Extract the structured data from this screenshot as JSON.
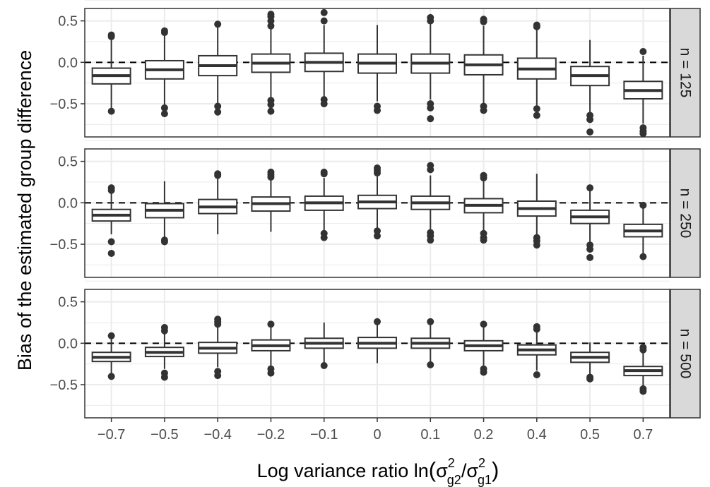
{
  "chart_data": {
    "type": "boxplot",
    "xlabel": "Log variance ratio ln(σ²g2/σ²g1)",
    "xlabel_parts": {
      "main": "Log variance ratio ln",
      "open": "(",
      "close": ")",
      "sigma": "σ",
      "exp": "2",
      "sub_num": "g2",
      "sub_den": "g1",
      "slash": "/"
    },
    "ylabel": "Bias of the estimated group difference",
    "categories": [
      "−0.7",
      "−0.5",
      "−0.4",
      "−0.2",
      "−0.1",
      "0",
      "0.1",
      "0.2",
      "0.4",
      "0.5",
      "0.7"
    ],
    "ylim": [
      -0.9,
      0.65
    ],
    "yticks": [
      -0.5,
      0.0,
      0.5
    ],
    "ytick_labels": [
      "−0.5",
      "0.0",
      "0.5"
    ],
    "reference_line": 0,
    "grid": true,
    "colors": {
      "box_fill": "#ffffff",
      "box_stroke": "#333333",
      "grid": "#ebebeb",
      "strip_bg": "#d9d9d9",
      "reference": "#000000"
    },
    "panels": [
      {
        "label": "n = 125",
        "boxes": [
          {
            "q1": -0.26,
            "median": -0.16,
            "q3": -0.07,
            "lo": -0.55,
            "hi": 0.27,
            "outliers": [
              0.33,
              0.31,
              -0.59
            ]
          },
          {
            "q1": -0.2,
            "median": -0.09,
            "q3": 0.02,
            "lo": -0.52,
            "hi": 0.33,
            "outliers": [
              0.38,
              0.36,
              -0.55,
              -0.62
            ]
          },
          {
            "q1": -0.16,
            "median": -0.04,
            "q3": 0.08,
            "lo": -0.5,
            "hi": 0.45,
            "outliers": [
              0.46,
              -0.53,
              -0.6
            ]
          },
          {
            "q1": -0.12,
            "median": -0.01,
            "q3": 0.1,
            "lo": -0.44,
            "hi": 0.42,
            "outliers": [
              0.58,
              0.55,
              0.5,
              0.44,
              -0.46,
              -0.51,
              -0.59
            ]
          },
          {
            "q1": -0.11,
            "median": 0.0,
            "q3": 0.11,
            "lo": -0.42,
            "hi": 0.45,
            "outliers": [
              0.6,
              0.5,
              -0.45,
              -0.5
            ]
          },
          {
            "q1": -0.13,
            "median": -0.01,
            "q3": 0.1,
            "lo": -0.47,
            "hi": 0.45,
            "outliers": [
              -0.53,
              -0.58
            ]
          },
          {
            "q1": -0.13,
            "median": -0.01,
            "q3": 0.1,
            "lo": -0.45,
            "hi": 0.47,
            "outliers": [
              0.54,
              0.5,
              -0.5,
              -0.55,
              -0.68
            ]
          },
          {
            "q1": -0.15,
            "median": -0.03,
            "q3": 0.09,
            "lo": -0.5,
            "hi": 0.44,
            "outliers": [
              0.52,
              0.49,
              -0.53,
              -0.58
            ]
          },
          {
            "q1": -0.2,
            "median": -0.08,
            "q3": 0.05,
            "lo": -0.52,
            "hi": 0.41,
            "outliers": [
              0.45,
              0.43,
              -0.56,
              -0.64
            ]
          },
          {
            "q1": -0.28,
            "median": -0.16,
            "q3": -0.05,
            "lo": -0.6,
            "hi": 0.27,
            "outliers": [
              -0.64,
              -0.69,
              -0.84
            ]
          },
          {
            "q1": -0.44,
            "median": -0.34,
            "q3": -0.23,
            "lo": -0.74,
            "hi": 0.08,
            "outliers": [
              0.13,
              -0.79,
              -0.83,
              -0.86
            ]
          }
        ]
      },
      {
        "label": "n = 250",
        "boxes": [
          {
            "q1": -0.22,
            "median": -0.15,
            "q3": -0.08,
            "lo": -0.38,
            "hi": 0.13,
            "outliers": [
              0.18,
              0.15,
              -0.47,
              -0.61
            ]
          },
          {
            "q1": -0.18,
            "median": -0.09,
            "q3": -0.01,
            "lo": -0.42,
            "hi": 0.26,
            "outliers": [
              -0.45,
              -0.47
            ]
          },
          {
            "q1": -0.13,
            "median": -0.05,
            "q3": 0.04,
            "lo": -0.38,
            "hi": 0.29,
            "outliers": [
              0.35,
              0.33
            ]
          },
          {
            "q1": -0.1,
            "median": -0.01,
            "q3": 0.07,
            "lo": -0.35,
            "hi": 0.3,
            "outliers": [
              0.37,
              0.34,
              0.31
            ]
          },
          {
            "q1": -0.09,
            "median": 0.0,
            "q3": 0.08,
            "lo": -0.34,
            "hi": 0.3,
            "outliers": [
              0.37,
              0.35,
              -0.37,
              -0.42
            ]
          },
          {
            "q1": -0.07,
            "median": 0.01,
            "q3": 0.09,
            "lo": -0.3,
            "hi": 0.32,
            "outliers": [
              0.42,
              0.39,
              0.36,
              -0.34,
              -0.4
            ]
          },
          {
            "q1": -0.08,
            "median": 0.0,
            "q3": 0.08,
            "lo": -0.32,
            "hi": 0.33,
            "outliers": [
              0.45,
              0.4,
              -0.36,
              -0.4,
              -0.45
            ]
          },
          {
            "q1": -0.12,
            "median": -0.03,
            "q3": 0.05,
            "lo": -0.35,
            "hi": 0.27,
            "outliers": [
              0.33,
              0.3,
              -0.37,
              -0.42,
              -0.45
            ]
          },
          {
            "q1": -0.16,
            "median": -0.07,
            "q3": 0.02,
            "lo": -0.39,
            "hi": 0.35,
            "outliers": [
              -0.42,
              -0.46,
              -0.51
            ]
          },
          {
            "q1": -0.25,
            "median": -0.17,
            "q3": -0.09,
            "lo": -0.48,
            "hi": 0.14,
            "outliers": [
              0.18,
              -0.51,
              -0.56,
              -0.66
            ]
          },
          {
            "q1": -0.41,
            "median": -0.34,
            "q3": -0.26,
            "lo": -0.61,
            "hi": -0.04,
            "outliers": [
              -0.03,
              -0.65
            ]
          }
        ]
      },
      {
        "label": "n = 500",
        "boxes": [
          {
            "q1": -0.22,
            "median": -0.17,
            "q3": -0.11,
            "lo": -0.38,
            "hi": 0.05,
            "outliers": [
              0.09,
              -0.4
            ]
          },
          {
            "q1": -0.16,
            "median": -0.11,
            "q3": -0.05,
            "lo": -0.31,
            "hi": 0.13,
            "outliers": [
              0.19,
              0.15,
              -0.36,
              -0.41
            ]
          },
          {
            "q1": -0.12,
            "median": -0.06,
            "q3": 0.01,
            "lo": -0.29,
            "hi": 0.2,
            "outliers": [
              0.29,
              0.26,
              0.23,
              -0.34,
              -0.39
            ]
          },
          {
            "q1": -0.09,
            "median": -0.03,
            "q3": 0.04,
            "lo": -0.29,
            "hi": 0.22,
            "outliers": [
              0.23,
              -0.31,
              -0.36
            ]
          },
          {
            "q1": -0.06,
            "median": 0.0,
            "q3": 0.06,
            "lo": -0.24,
            "hi": 0.25,
            "outliers": [
              -0.27
            ]
          },
          {
            "q1": -0.06,
            "median": 0.0,
            "q3": 0.07,
            "lo": -0.24,
            "hi": 0.25,
            "outliers": [
              0.26
            ]
          },
          {
            "q1": -0.06,
            "median": 0.0,
            "q3": 0.06,
            "lo": -0.25,
            "hi": 0.23,
            "outliers": [
              0.26,
              -0.26
            ]
          },
          {
            "q1": -0.09,
            "median": -0.03,
            "q3": 0.03,
            "lo": -0.28,
            "hi": 0.2,
            "outliers": [
              0.23,
              -0.31,
              -0.35
            ]
          },
          {
            "q1": -0.14,
            "median": -0.08,
            "q3": -0.02,
            "lo": -0.33,
            "hi": 0.16,
            "outliers": [
              0.2,
              0.17,
              -0.38
            ]
          },
          {
            "q1": -0.23,
            "median": -0.17,
            "q3": -0.11,
            "lo": -0.38,
            "hi": 0.01,
            "outliers": [
              -0.41,
              -0.43
            ]
          },
          {
            "q1": -0.39,
            "median": -0.33,
            "q3": -0.28,
            "lo": -0.52,
            "hi": -0.1,
            "outliers": [
              -0.05,
              -0.08,
              -0.55,
              -0.58
            ]
          }
        ]
      }
    ]
  }
}
